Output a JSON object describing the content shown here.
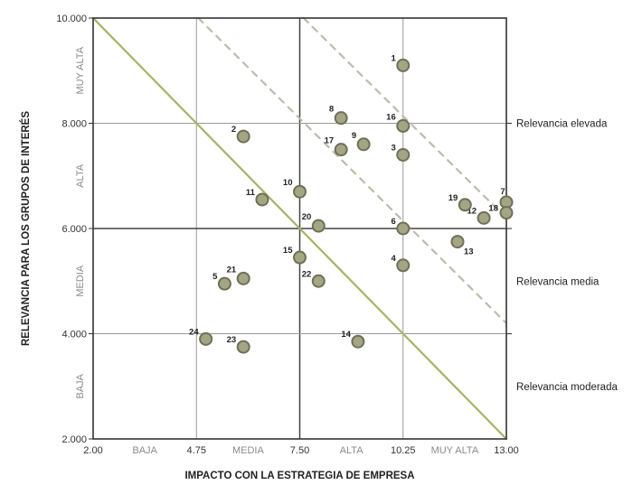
{
  "chart_data": {
    "type": "scatter",
    "xlabel": "IMPACTO CON LA ESTRATEGIA DE EMPRESA",
    "ylabel": "RELEVANCIA PARA LOS GRUPOS DE INTERÉS",
    "xlim": [
      2.0,
      13.0
    ],
    "ylim": [
      2.0,
      10.0
    ],
    "x_ticks": [
      {
        "value": 2.0,
        "label": "2.00"
      },
      {
        "value": 4.75,
        "label": "4.75"
      },
      {
        "value": 7.5,
        "label": "7.50"
      },
      {
        "value": 10.25,
        "label": "10.25"
      },
      {
        "value": 13.0,
        "label": "13.00"
      }
    ],
    "y_ticks": [
      {
        "value": 2.0,
        "label": "2.000"
      },
      {
        "value": 4.0,
        "label": "4.000"
      },
      {
        "value": 6.0,
        "label": "6.000"
      },
      {
        "value": 8.0,
        "label": "8.000"
      },
      {
        "value": 10.0,
        "label": "10.000"
      }
    ],
    "x_bands": [
      {
        "label": "BAJA",
        "center": 3.375
      },
      {
        "label": "MEDIA",
        "center": 6.125
      },
      {
        "label": "ALTA",
        "center": 8.875
      },
      {
        "label": "MUY ALTA",
        "center": 11.625
      }
    ],
    "y_bands": [
      {
        "label": "BAJA",
        "center": 3.0
      },
      {
        "label": "MEDIA",
        "center": 5.0
      },
      {
        "label": "ALTA",
        "center": 7.0
      },
      {
        "label": "MUY ALTA",
        "center": 9.0
      }
    ],
    "grid": true,
    "points": [
      {
        "label": "1",
        "x": 10.25,
        "y": 9.1
      },
      {
        "label": "2",
        "x": 6.0,
        "y": 7.75
      },
      {
        "label": "3",
        "x": 10.25,
        "y": 7.4
      },
      {
        "label": "4",
        "x": 10.25,
        "y": 5.3
      },
      {
        "label": "5",
        "x": 5.5,
        "y": 4.95
      },
      {
        "label": "6",
        "x": 10.25,
        "y": 6.0
      },
      {
        "label": "7",
        "x": 13.0,
        "y": 6.5
      },
      {
        "label": "8",
        "x": 8.6,
        "y": 8.1
      },
      {
        "label": "9",
        "x": 9.2,
        "y": 7.6
      },
      {
        "label": "10",
        "x": 7.5,
        "y": 6.7
      },
      {
        "label": "11",
        "x": 6.5,
        "y": 6.55
      },
      {
        "label": "12",
        "x": 12.4,
        "y": 6.2
      },
      {
        "label": "13",
        "x": 11.7,
        "y": 5.75
      },
      {
        "label": "14",
        "x": 9.05,
        "y": 3.85
      },
      {
        "label": "15",
        "x": 7.5,
        "y": 5.45
      },
      {
        "label": "16",
        "x": 10.25,
        "y": 7.95
      },
      {
        "label": "17",
        "x": 8.6,
        "y": 7.5
      },
      {
        "label": "18",
        "x": 13.0,
        "y": 6.3
      },
      {
        "label": "19",
        "x": 11.9,
        "y": 6.45
      },
      {
        "label": "20",
        "x": 8.0,
        "y": 6.05
      },
      {
        "label": "21",
        "x": 6.0,
        "y": 5.05
      },
      {
        "label": "22",
        "x": 8.0,
        "y": 5.0
      },
      {
        "label": "23",
        "x": 6.0,
        "y": 3.75
      },
      {
        "label": "24",
        "x": 5.0,
        "y": 3.9
      }
    ],
    "relevance_levels": [
      {
        "label": "Relevancia elevada",
        "y": 8.0
      },
      {
        "label": "Relevancia media",
        "y": 5.0
      },
      {
        "label": "Relevancia moderada",
        "y": 3.0
      }
    ],
    "diagonal_lines": [
      {
        "style": "solid",
        "from": [
          2.0,
          10.0
        ],
        "to": [
          13.0,
          2.0
        ]
      },
      {
        "style": "dashed",
        "from": [
          4.8,
          10.0
        ],
        "to": [
          13.0,
          4.2
        ]
      },
      {
        "style": "dashed",
        "from": [
          7.6,
          10.0
        ],
        "to": [
          13.0,
          6.2
        ]
      }
    ],
    "colors": {
      "point_fill": "#a4a683",
      "point_stroke": "#6e7058",
      "diagonal_solid": "#a9b267",
      "diagonal_dashed": "#bcbcaa",
      "frame": "#333333",
      "grid": "#9a9a9a"
    }
  }
}
